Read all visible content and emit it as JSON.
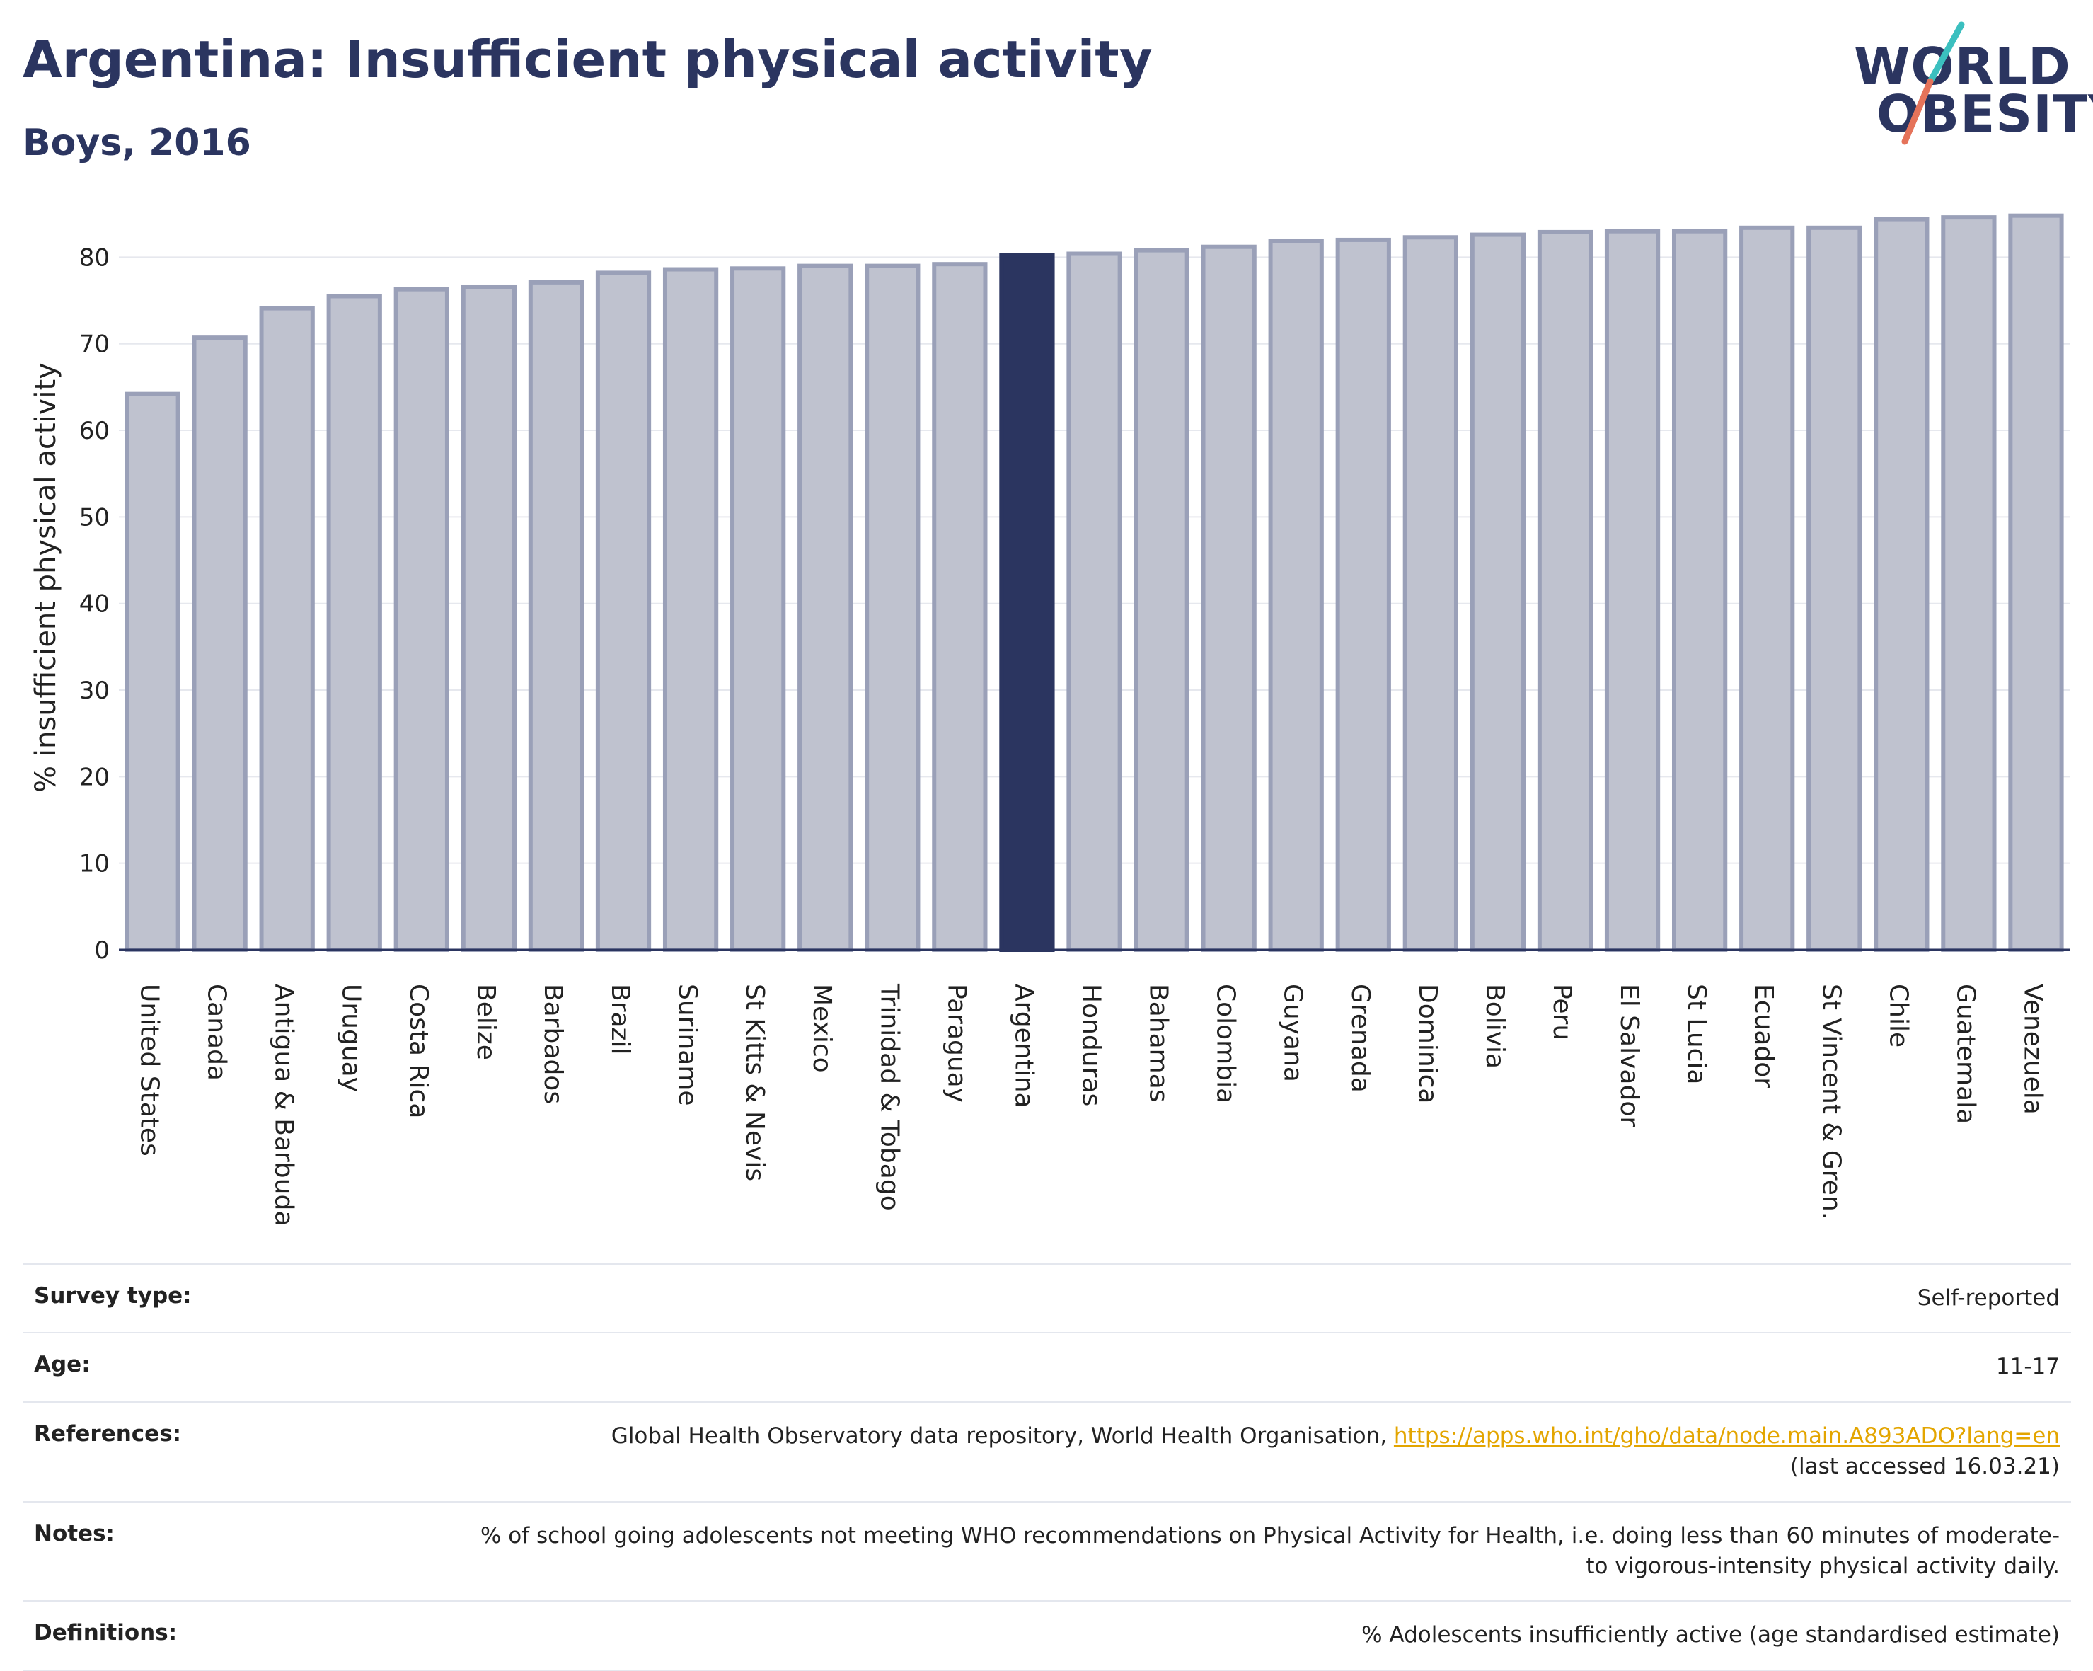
{
  "header": {
    "title": "Argentina: Insufficient physical activity",
    "subtitle": "Boys, 2016"
  },
  "logo": {
    "line1": "WORLD",
    "line2": "OBESITY",
    "colors": [
      "#2b3560",
      "#3bbfbf",
      "#e5735a"
    ]
  },
  "chart_data": {
    "type": "bar",
    "title": "Argentina: Insufficient physical activity",
    "subtitle": "Boys, 2016",
    "ylabel": "% insufficient physical activity",
    "xlabel": "",
    "ylim": [
      0,
      86
    ],
    "yticks": [
      0,
      10,
      20,
      30,
      40,
      50,
      60,
      70,
      80
    ],
    "grid": true,
    "highlight": "Argentina",
    "highlight_color": "#2b3560",
    "bar_color": "#bfc2cf",
    "bar_edge_color": "#9aa0b8",
    "categories": [
      "United States",
      "Canada",
      "Antigua & Barbuda",
      "Uruguay",
      "Costa Rica",
      "Belize",
      "Barbados",
      "Brazil",
      "Suriname",
      "St Kitts & Nevis",
      "Mexico",
      "Trinidad & Tobago",
      "Paraguay",
      "Argentina",
      "Honduras",
      "Bahamas",
      "Colombia",
      "Guyana",
      "Grenada",
      "Dominica",
      "Bolivia",
      "Peru",
      "El Salvador",
      "St Lucia",
      "Ecuador",
      "St Vincent & Gren.",
      "Chile",
      "Guatemala",
      "Venezuela"
    ],
    "values": [
      64.2,
      70.7,
      74.1,
      75.5,
      76.3,
      76.6,
      77.1,
      78.2,
      78.6,
      78.7,
      79.0,
      79.0,
      79.2,
      80.2,
      80.4,
      80.8,
      81.2,
      81.9,
      82.0,
      82.3,
      82.6,
      82.9,
      83.0,
      83.0,
      83.4,
      83.4,
      84.4,
      84.6,
      84.8
    ]
  },
  "meta": [
    {
      "label": "Survey type:",
      "value": "Self-reported"
    },
    {
      "label": "Age:",
      "value": "11-17"
    },
    {
      "label": "References:",
      "value": "Global Health Observatory data repository, World Health Organisation, ",
      "link": "https://apps.who.int/gho/data/node.main.A893ADO?lang=en",
      "value2": "(last accessed 16.03.21)"
    },
    {
      "label": "Notes:",
      "value": "% of school going adolescents not meeting WHO recommendations on Physical Activity for Health, i.e. doing less than 60 minutes of moderate- to vigorous-intensity physical activity daily."
    },
    {
      "label": "Definitions:",
      "value": "% Adolescents insufficiently active (age standardised estimate)"
    }
  ]
}
